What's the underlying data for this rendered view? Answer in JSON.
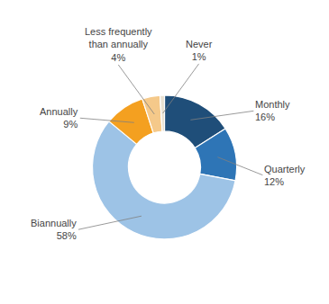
{
  "chart_data": {
    "type": "pie",
    "categories": [
      "Monthly",
      "Quarterly",
      "Biannually",
      "Annually",
      "Less frequently\nthan annually",
      "Never"
    ],
    "values": [
      16,
      12,
      58,
      9,
      4,
      1
    ],
    "value_labels": [
      "16%",
      "12%",
      "58%",
      "9%",
      "4%",
      "1%"
    ],
    "colors": [
      "#1F4E79",
      "#2E75B6",
      "#9DC3E6",
      "#F4A020",
      "#F5C98A",
      "#E8E0D0"
    ],
    "data_labels": true
  }
}
